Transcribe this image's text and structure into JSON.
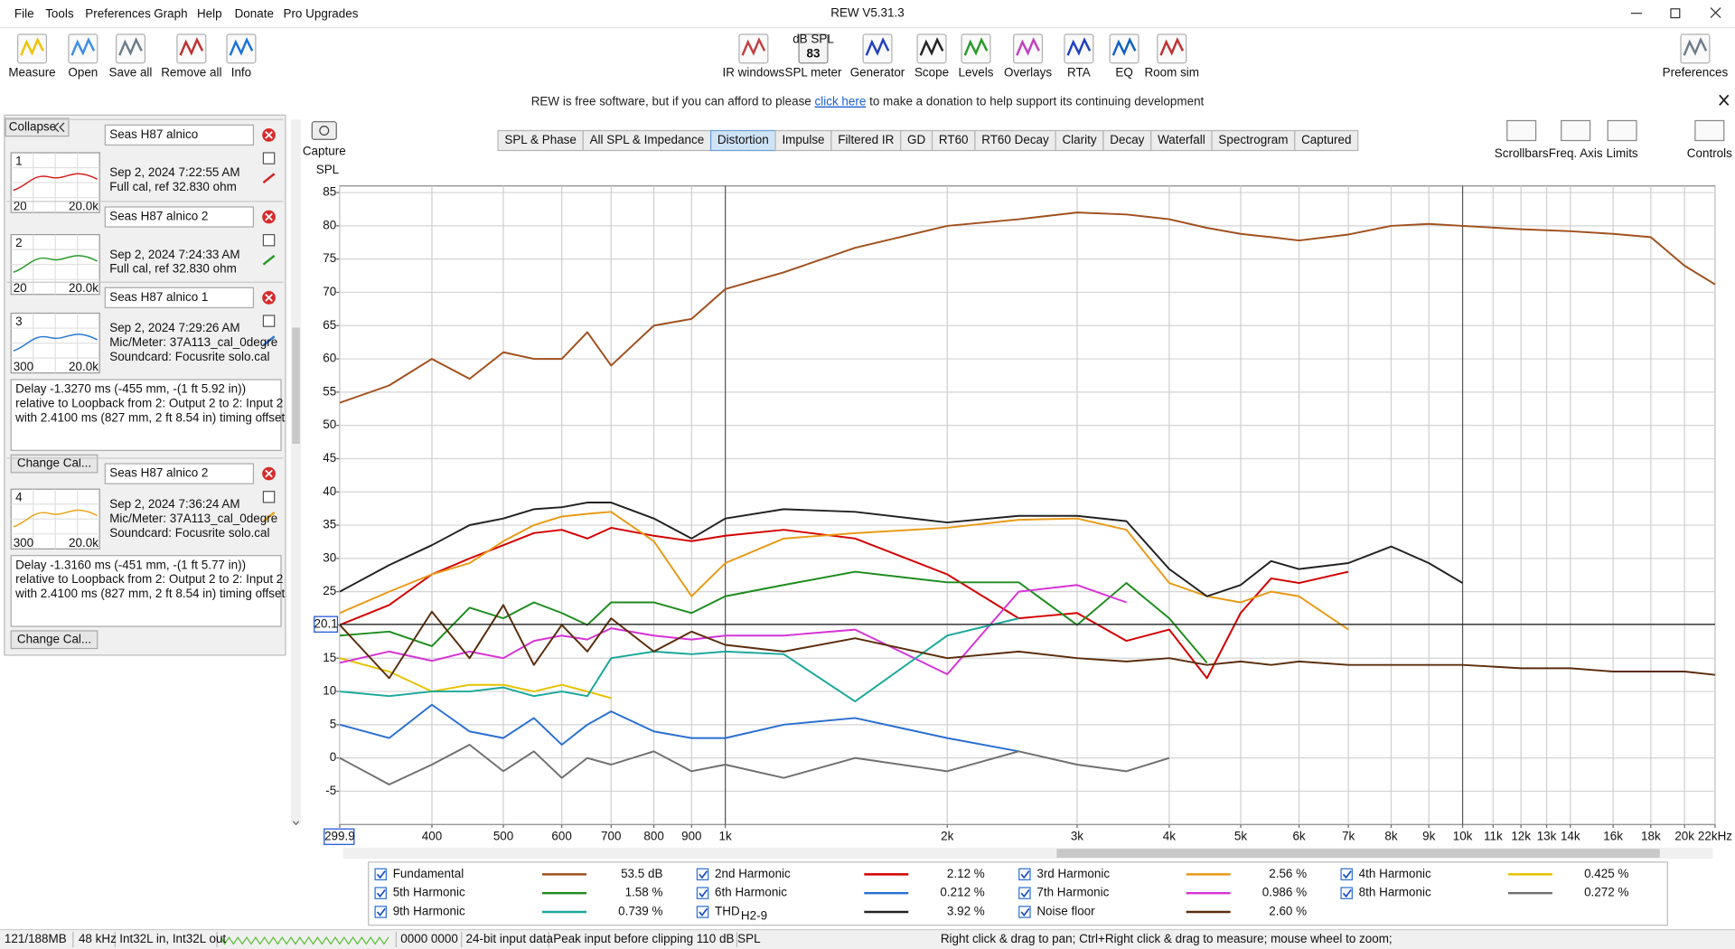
{
  "window": {
    "title": "REW V5.31.3"
  },
  "menu": [
    "File",
    "Tools",
    "Preferences",
    "Graph",
    "Help",
    "Donate",
    "Pro Upgrades"
  ],
  "toolbar": {
    "left": [
      "Measure",
      "Open",
      "Save all",
      "Remove all",
      "Info"
    ],
    "center": [
      "IR windows",
      "SPL meter",
      "Generator",
      "Scope",
      "Levels",
      "Overlays",
      "RTA",
      "EQ",
      "Room sim"
    ],
    "spl_icon": {
      "unit": "dB SPL",
      "reading": 83
    },
    "right": [
      "Preferences"
    ]
  },
  "banner": {
    "before": "REW is free software, but if you can afford to please ",
    "link": "click here",
    "after": " to make a donation to help support its continuing development"
  },
  "panel": {
    "collapse": "Collapse",
    "measurements": [
      {
        "number": 1,
        "name": "Seas H87 alnico",
        "date": "Sep 2, 2024 7:22:55 AM",
        "info": [
          "Full cal, ref 32.830 ohm"
        ],
        "range": [
          20,
          "20.0k"
        ],
        "color": "#d42020"
      },
      {
        "number": 2,
        "name": "Seas H87 alnico 2",
        "date": "Sep 2, 2024 7:24:33 AM",
        "info": [
          "Full cal, ref 32.830 ohm"
        ],
        "range": [
          20,
          "20.0k"
        ],
        "color": "#2a9a2a"
      },
      {
        "number": 3,
        "name": "Seas H87 alnico 1",
        "date": "Sep 2, 2024 7:29:26 AM",
        "info": [
          "Mic/Meter: 37A113_cal_0degre",
          "Soundcard: Focusrite solo.cal"
        ],
        "range": [
          300,
          "20.0k"
        ],
        "color": "#2a7ad4",
        "notes": [
          "Delay -1.3270 ms (-455 mm, -(1 ft 5.92 in))",
          " relative to Loopback from 2: Output 2 to 2: Input 2",
          "with 2.4100 ms (827 mm, 2 ft 8.54 in) timing offset"
        ],
        "button": "Change Cal..."
      },
      {
        "number": 4,
        "name": "Seas H87 alnico 2",
        "date": "Sep 2, 2024 7:36:24 AM",
        "info": [
          "Mic/Meter: 37A113_cal_0degre",
          "Soundcard: Focusrite solo.cal"
        ],
        "range": [
          300,
          "20.0k"
        ],
        "color": "#e8a317",
        "notes": [
          "Delay -1.3160 ms (-451 mm, -(1 ft 5.77 in))",
          " relative to Loopback from 2: Output 2 to 2: Input 2",
          "with 2.4100 ms (827 mm, 2 ft 8.54 in) timing offset"
        ],
        "button": "Change Cal..."
      }
    ]
  },
  "graph_tools": {
    "capture": "Capture",
    "tabs": [
      "SPL & Phase",
      "All SPL & Impedance",
      "Distortion",
      "Impulse",
      "Filtered IR",
      "GD",
      "RT60",
      "RT60 Decay",
      "Clarity",
      "Decay",
      "Waterfall",
      "Spectrogram",
      "Captured"
    ],
    "selected": 2,
    "right": [
      "Scrollbars",
      "Freq. Axis",
      "Limits",
      "Controls"
    ]
  },
  "chart_data": {
    "type": "line",
    "y_label": "SPL",
    "log_x": true,
    "grid": true,
    "xlim": [
      299.9,
      22000
    ],
    "ylim": [
      -10,
      86
    ],
    "cursor_y": 20.1,
    "xticks": [
      299.9,
      400,
      500,
      600,
      700,
      800,
      900,
      {
        "value": 1000,
        "label": "1k"
      },
      {
        "value": 2000,
        "label": "2k"
      },
      {
        "value": 3000,
        "label": "3k"
      },
      {
        "value": 4000,
        "label": "4k"
      },
      {
        "value": 5000,
        "label": "5k"
      },
      {
        "value": 6000,
        "label": "6k"
      },
      {
        "value": 7000,
        "label": "7k"
      },
      {
        "value": 8000,
        "label": "8k"
      },
      {
        "value": 9000,
        "label": "9k"
      },
      {
        "value": 10000,
        "label": "10k"
      },
      {
        "value": 11000,
        "label": "11k"
      },
      {
        "value": 12000,
        "label": "12k"
      },
      {
        "value": 13000,
        "label": "13k"
      },
      {
        "value": 14000,
        "label": "14k"
      },
      {
        "value": 16000,
        "label": "16k"
      },
      {
        "value": 18000,
        "label": "18k"
      },
      {
        "value": 20000,
        "label": "20k"
      },
      {
        "value": 22000,
        "label": "22kHz"
      }
    ],
    "yticks": [
      -5,
      0,
      5,
      10,
      15,
      20,
      25,
      30,
      35,
      40,
      45,
      50,
      55,
      60,
      65,
      70,
      75,
      80,
      85
    ],
    "x": [
      300,
      350,
      400,
      450,
      500,
      550,
      600,
      650,
      700,
      800,
      900,
      1000,
      1200,
      1500,
      2000,
      2500,
      3000,
      3500,
      4000,
      4500,
      5000,
      5500,
      6000,
      7000,
      8000,
      9000,
      10000,
      12000,
      14000,
      16000,
      18000,
      20000,
      22000
    ],
    "series": [
      {
        "name": "Fundamental",
        "color": "#a0501e",
        "readout": "53.5 dB",
        "values": [
          53.4,
          56,
          60,
          57,
          61,
          60,
          60,
          64,
          59,
          65,
          66,
          70.5,
          73,
          76.7,
          80,
          81,
          82,
          81.7,
          81,
          79.7,
          78.8,
          78.3,
          77.8,
          78.7,
          80,
          80.3,
          80,
          79.5,
          79.2,
          78.8,
          78.3,
          74,
          71.2
        ]
      },
      {
        "name": "2nd Harmonic",
        "color": "#d40000",
        "readout": "2.12 %",
        "values": [
          20,
          23,
          27.6,
          30,
          32,
          33.8,
          34.3,
          33,
          34.6,
          33.4,
          32.6,
          33.4,
          34.3,
          33,
          27.6,
          21,
          21.8,
          17.6,
          19.3,
          12,
          21.8,
          27,
          26.3,
          28,
          null,
          null,
          null,
          null,
          null,
          null,
          null,
          null,
          null
        ]
      },
      {
        "name": "3rd Harmonic",
        "color": "#e89a17",
        "readout": "2.56 %",
        "values": [
          21.8,
          25,
          27.6,
          29.3,
          32.6,
          35,
          36.3,
          36.7,
          37,
          32.6,
          24.3,
          29.3,
          33,
          33.8,
          34.6,
          35.8,
          36,
          34.3,
          26.3,
          24.3,
          23.4,
          25,
          24.3,
          19.3,
          null,
          null,
          null,
          null,
          null,
          null,
          null,
          null,
          null
        ]
      },
      {
        "name": "4th Harmonic",
        "color": "#e6c200",
        "readout": "0.425 %",
        "values": [
          15,
          13,
          10,
          11,
          11,
          10,
          11,
          10,
          9,
          null,
          null,
          null,
          null,
          null,
          null,
          null,
          null,
          null,
          null,
          null,
          null,
          null,
          null,
          null,
          null,
          null,
          null,
          null,
          null,
          null,
          null,
          null,
          null
        ]
      },
      {
        "name": "5th Harmonic",
        "color": "#1e8c1e",
        "readout": "1.58 %",
        "values": [
          18.4,
          19,
          16.8,
          22.6,
          21,
          23.4,
          21.8,
          20,
          23.4,
          23.4,
          21.8,
          24.3,
          26,
          28,
          26.4,
          26.4,
          20,
          26.3,
          21,
          14.3,
          null,
          null,
          null,
          null,
          null,
          null,
          null,
          null,
          null,
          null,
          null,
          null,
          null
        ]
      },
      {
        "name": "6th Harmonic",
        "color": "#2a6fd1",
        "readout": "0.212 %",
        "values": [
          5,
          3,
          8,
          4,
          3,
          6,
          2,
          5,
          7,
          4,
          3,
          3,
          5,
          6,
          3,
          1,
          null,
          null,
          null,
          null,
          null,
          null,
          null,
          null,
          null,
          null,
          null,
          null,
          null,
          null,
          null,
          null,
          null
        ]
      },
      {
        "name": "7th Harmonic",
        "color": "#d633d6",
        "readout": "0.986 %",
        "values": [
          14.3,
          16,
          14.6,
          16,
          15,
          17.6,
          18.4,
          17.8,
          19.5,
          18.4,
          17.8,
          18.4,
          18.4,
          19.3,
          12.6,
          25,
          26,
          23.4,
          null,
          null,
          null,
          null,
          null,
          null,
          null,
          null,
          null,
          null,
          null,
          null,
          null,
          null,
          null
        ]
      },
      {
        "name": "8th Harmonic",
        "color": "#707070",
        "readout": "0.272 %",
        "values": [
          0,
          -4,
          -1,
          2,
          -2,
          1,
          -3,
          0,
          -1,
          1,
          -2,
          -1,
          -3,
          0,
          -2,
          1,
          -1,
          -2,
          0,
          null,
          null,
          null,
          null,
          null,
          null,
          null,
          null,
          null,
          null,
          null,
          null,
          null,
          null
        ]
      },
      {
        "name": "9th Harmonic",
        "color": "#1aa89a",
        "readout": "0.739 %",
        "values": [
          10,
          9.3,
          10,
          10,
          10.6,
          9.3,
          10,
          9.3,
          15,
          16,
          15.6,
          16,
          15.6,
          8.5,
          18.4,
          21,
          null,
          null,
          null,
          null,
          null,
          null,
          null,
          null,
          null,
          null,
          null,
          null,
          null,
          null,
          null,
          null,
          null
        ]
      },
      {
        "name": "THD",
        "name_sub": "H2-9",
        "color": "#222222",
        "readout": "3.92 %",
        "values": [
          25,
          29,
          32,
          35,
          36,
          37.4,
          37.7,
          38.4,
          38.4,
          36,
          33,
          36,
          37.4,
          37,
          35.4,
          36.4,
          36.4,
          35.6,
          28.4,
          24.3,
          26,
          29.6,
          28.4,
          29.3,
          31.8,
          29.3,
          26.3,
          null,
          null,
          null,
          null,
          null,
          null
        ]
      },
      {
        "name": "Noise floor",
        "color": "#5a2d0c",
        "readout": "2.60 %",
        "values": [
          20,
          12,
          22,
          15,
          23,
          14,
          20,
          16,
          21,
          16,
          19,
          17,
          16,
          18,
          15,
          16,
          15,
          14.5,
          15,
          14,
          14.5,
          14,
          14.5,
          14,
          14,
          14,
          14,
          13.5,
          13.5,
          13,
          13,
          13,
          12.5
        ]
      }
    ]
  },
  "status_bar": [
    "121/188MB",
    "48 kHz",
    "Int32L in, Int32L out",
    "0000 0000",
    "24-bit input data",
    "Peak input before clipping 110 dB SPL",
    "Right click & drag to pan; Ctrl+Right click & drag to measure; mouse wheel to zoom;"
  ]
}
